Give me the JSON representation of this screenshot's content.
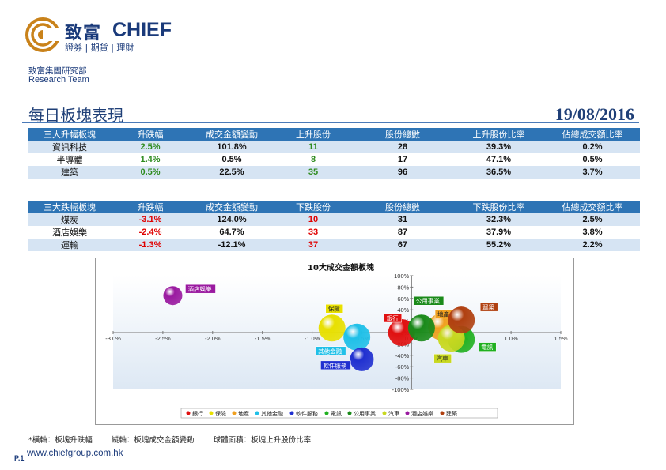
{
  "logo": {
    "cn": "致富",
    "en": "CHIEF",
    "sub": "證券 | 期貨 | 理財"
  },
  "dept": {
    "cn": "致富集團研究部",
    "en": "Research Team"
  },
  "title": "每日板塊表現",
  "date": "19/08/2016",
  "top_gainers": {
    "headers": [
      "三大升幅板塊",
      "升跌幅",
      "成交金額變動",
      "上升股份",
      "股份總數",
      "上升股份比率",
      "佔總成交額比率"
    ],
    "rows": [
      [
        "資訊科技",
        "2.5%",
        "101.8%",
        "11",
        "28",
        "39.3%",
        "0.2%"
      ],
      [
        "半導體",
        "1.4%",
        "0.5%",
        "8",
        "17",
        "47.1%",
        "0.5%"
      ],
      [
        "建築",
        "0.5%",
        "22.5%",
        "35",
        "96",
        "36.5%",
        "3.7%"
      ]
    ]
  },
  "top_losers": {
    "headers": [
      "三大跌幅板塊",
      "升跌幅",
      "成交金額變動",
      "下跌股份",
      "股份總數",
      "下跌股份比率",
      "佔總成交額比率"
    ],
    "rows": [
      [
        "煤炭",
        "-3.1%",
        "124.0%",
        "10",
        "31",
        "32.3%",
        "2.5%"
      ],
      [
        "酒店娛樂",
        "-2.4%",
        "64.7%",
        "33",
        "87",
        "37.9%",
        "3.8%"
      ],
      [
        "運輸",
        "-1.3%",
        "-12.1%",
        "37",
        "67",
        "55.2%",
        "2.2%"
      ]
    ]
  },
  "chart_data": {
    "type": "bubble",
    "title": "10大成交金額板塊",
    "xlim": [
      -3.0,
      1.5
    ],
    "ylim": [
      -100,
      100
    ],
    "x_ticks": [
      "-3.0%",
      "-2.5%",
      "-2.0%",
      "-1.5%",
      "-1.0%",
      "-0.5%",
      "0.0%",
      "0.5%",
      "1.0%",
      "1.5%"
    ],
    "y_ticks": [
      "100%",
      "80%",
      "60%",
      "40%",
      "20%",
      "0%",
      "-20%",
      "-40%",
      "-60%",
      "-80%",
      "-100%"
    ],
    "series": [
      {
        "name": "銀行",
        "x": -0.1,
        "y": 0,
        "color": "#e01010"
      },
      {
        "name": "保險",
        "x": -0.8,
        "y": 8,
        "color": "#e8e000"
      },
      {
        "name": "地產",
        "x": 0.3,
        "y": 10,
        "color": "#f0a020"
      },
      {
        "name": "其他金融",
        "x": -0.55,
        "y": -8,
        "color": "#20c0e8"
      },
      {
        "name": "軟件服務",
        "x": -0.5,
        "y": -47,
        "color": "#2030d0"
      },
      {
        "name": "電訊",
        "x": 0.5,
        "y": -12,
        "color": "#20b020"
      },
      {
        "name": "公用事業",
        "x": 0.1,
        "y": 8,
        "color": "#1a8a1a"
      },
      {
        "name": "汽車",
        "x": 0.4,
        "y": -10,
        "color": "#c8d820"
      },
      {
        "name": "酒店娛樂",
        "x": -2.4,
        "y": 65,
        "color": "#9a1aa0"
      },
      {
        "name": "建築",
        "x": 0.5,
        "y": 22,
        "color": "#b04010"
      }
    ]
  },
  "footnote": "*橫軸：板塊升跌幅        縱軸：板塊成交金額變動        球體面積：板塊上升股份比率",
  "page_num": "P.1",
  "website": "www.chiefgroup.com.hk"
}
